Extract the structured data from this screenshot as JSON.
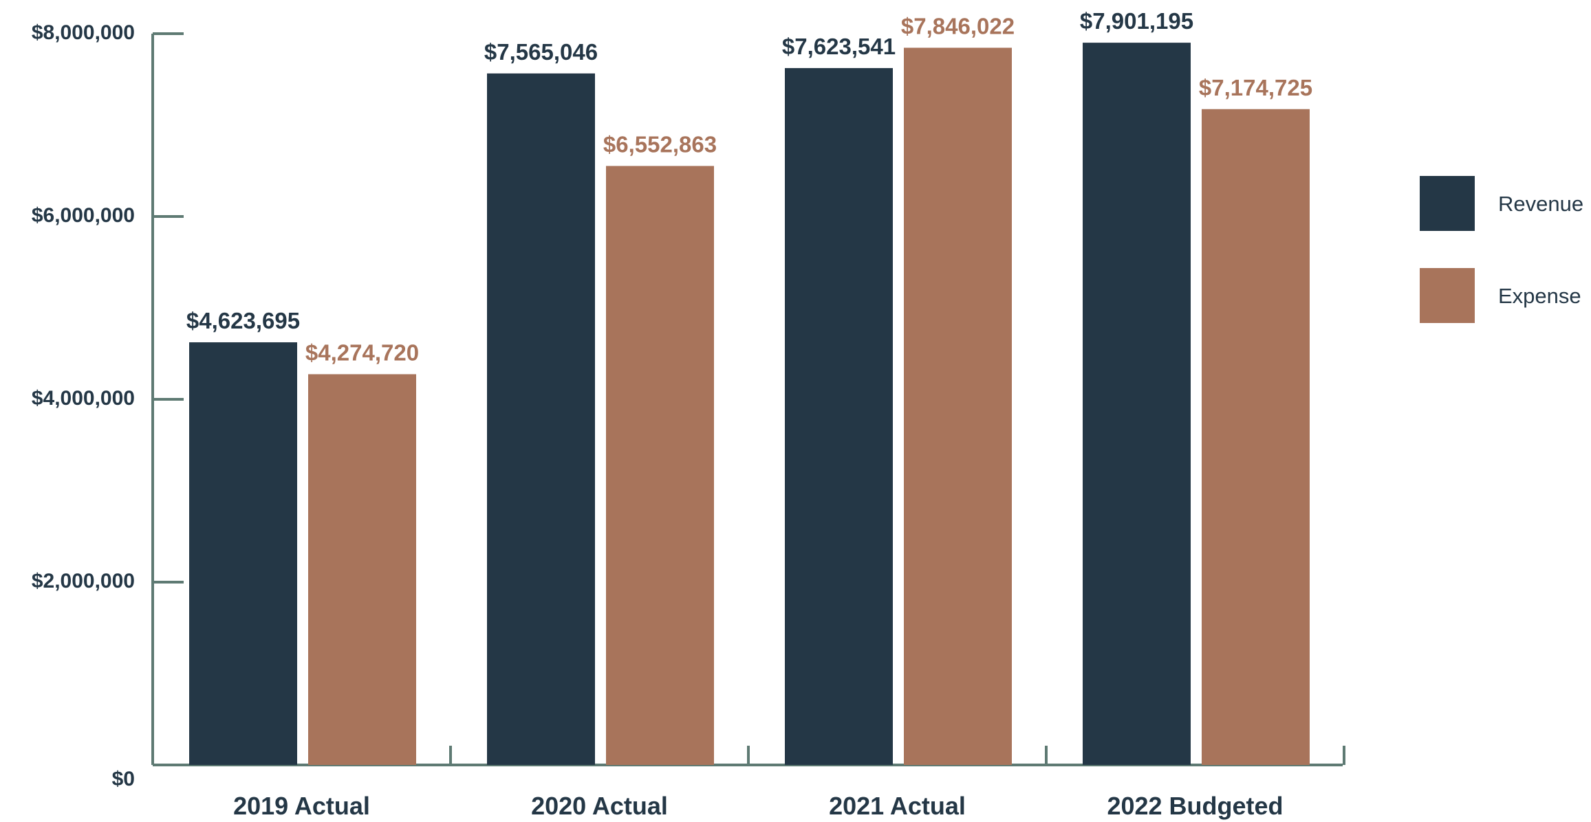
{
  "chart_data": {
    "type": "bar",
    "title": "",
    "xlabel": "",
    "ylabel": "",
    "categories": [
      "2019 Actual",
      "2020 Actual",
      "2021 Actual",
      "2022 Budgeted"
    ],
    "series": [
      {
        "name": "Revenue",
        "color": "#243746",
        "values": [
          4623695,
          7565046,
          7623541,
          7901195
        ],
        "labels": [
          "$4,623,695",
          "$7,565,046",
          "$7,623,541",
          "$7,901,195"
        ]
      },
      {
        "name": "Expense",
        "color": "#a8745b",
        "values": [
          4274720,
          6552863,
          7846022,
          7174725
        ],
        "labels": [
          "$4,274,720",
          "$6,552,863",
          "$7,846,022",
          "$7,174,725"
        ]
      }
    ],
    "ylim": [
      0,
      8000000
    ],
    "yticks": [
      0,
      2000000,
      4000000,
      6000000,
      8000000
    ],
    "ytick_labels": [
      "$0",
      "$2,000,000",
      "$4,000,000",
      "$6,000,000",
      "$8,000,000"
    ],
    "grid": false,
    "legend": "right",
    "axis_color": "#5e7a73"
  }
}
